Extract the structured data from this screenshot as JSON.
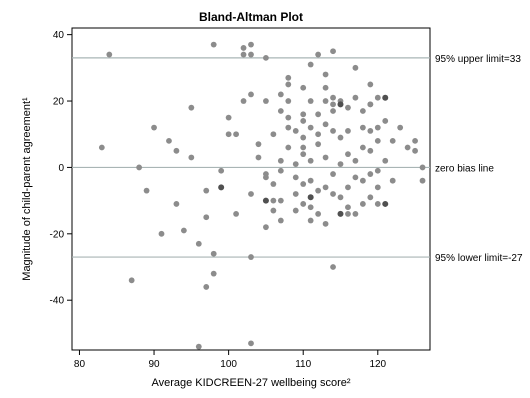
{
  "chart_data": {
    "type": "scatter",
    "title": "Bland-Altman Plot",
    "xlabel": "Average KIDCREEN-27 wellbeing score²",
    "ylabel": "Magnitude of child-parent agreement¹",
    "xlim": [
      79,
      127
    ],
    "ylim": [
      -55,
      42
    ],
    "xticks": [
      80,
      90,
      100,
      110,
      120
    ],
    "yticks": [
      40,
      20,
      0,
      -20,
      -40
    ],
    "grid": false,
    "colors": {
      "point": "#8c8c8c",
      "point_dark": "#505050",
      "line": "#a9b5b5",
      "frame": "#000000"
    },
    "reference_lines": [
      {
        "y": 33,
        "label": "95% upper limit=33"
      },
      {
        "y": 0,
        "label": "zero bias line"
      },
      {
        "y": -27,
        "label": "95% lower limit=-27"
      }
    ],
    "points": [
      [
        84,
        34
      ],
      [
        83,
        6
      ],
      [
        88,
        0
      ],
      [
        89,
        -7
      ],
      [
        90,
        12
      ],
      [
        91,
        -20
      ],
      [
        92,
        8
      ],
      [
        93,
        5
      ],
      [
        93,
        -11
      ],
      [
        94,
        -19
      ],
      [
        95,
        18
      ],
      [
        95,
        3
      ],
      [
        96,
        -23
      ],
      [
        87,
        -34
      ],
      [
        96,
        -54
      ],
      [
        97,
        -7
      ],
      [
        97,
        -15
      ],
      [
        97,
        -36
      ],
      [
        98,
        -32
      ],
      [
        98,
        -26
      ],
      [
        98,
        37
      ],
      [
        99,
        -1
      ],
      [
        100,
        10
      ],
      [
        100,
        15
      ],
      [
        101,
        10
      ],
      [
        101,
        -14
      ],
      [
        102,
        20
      ],
      [
        102,
        34
      ],
      [
        102,
        36
      ],
      [
        103,
        37
      ],
      [
        103,
        34
      ],
      [
        103,
        22
      ],
      [
        103,
        -8
      ],
      [
        103,
        -27
      ],
      [
        103,
        -53
      ],
      [
        104,
        3
      ],
      [
        104,
        7
      ],
      [
        105,
        20
      ],
      [
        105,
        33
      ],
      [
        105,
        -3
      ],
      [
        105,
        -18
      ],
      [
        105,
        -2
      ],
      [
        106,
        10
      ],
      [
        106,
        -5
      ],
      [
        106,
        -10
      ],
      [
        106,
        -13
      ],
      [
        107,
        22
      ],
      [
        107,
        17
      ],
      [
        107,
        2
      ],
      [
        107,
        -1
      ],
      [
        107,
        -10
      ],
      [
        107,
        -16
      ],
      [
        108,
        12
      ],
      [
        108,
        15
      ],
      [
        108,
        20
      ],
      [
        108,
        25
      ],
      [
        108,
        27
      ],
      [
        108,
        6
      ],
      [
        109,
        11
      ],
      [
        109,
        1
      ],
      [
        109,
        -3
      ],
      [
        109,
        -8
      ],
      [
        109,
        -13
      ],
      [
        110,
        24
      ],
      [
        110,
        14
      ],
      [
        110,
        16
      ],
      [
        110,
        9
      ],
      [
        110,
        4
      ],
      [
        110,
        -5
      ],
      [
        110,
        -11
      ],
      [
        110,
        6
      ],
      [
        111,
        31
      ],
      [
        111,
        20
      ],
      [
        111,
        12
      ],
      [
        111,
        2
      ],
      [
        111,
        -4
      ],
      [
        111,
        -12
      ],
      [
        111,
        -16
      ],
      [
        112,
        34
      ],
      [
        112,
        16
      ],
      [
        112,
        10
      ],
      [
        112,
        7
      ],
      [
        112,
        -7
      ],
      [
        112,
        -14
      ],
      [
        113,
        28
      ],
      [
        113,
        24
      ],
      [
        113,
        20
      ],
      [
        113,
        13
      ],
      [
        113,
        3
      ],
      [
        113,
        -6
      ],
      [
        113,
        -17
      ],
      [
        114,
        35
      ],
      [
        114,
        21
      ],
      [
        114,
        17
      ],
      [
        114,
        11
      ],
      [
        114,
        -2
      ],
      [
        114,
        -8
      ],
      [
        114,
        -30
      ],
      [
        115,
        20
      ],
      [
        115,
        9
      ],
      [
        115,
        1
      ],
      [
        115,
        -9
      ],
      [
        116,
        18
      ],
      [
        116,
        11
      ],
      [
        116,
        4
      ],
      [
        116,
        -6
      ],
      [
        116,
        -12
      ],
      [
        117,
        30
      ],
      [
        117,
        21
      ],
      [
        117,
        2
      ],
      [
        117,
        -3
      ],
      [
        117,
        -14
      ],
      [
        118,
        17
      ],
      [
        118,
        12
      ],
      [
        118,
        6
      ],
      [
        118,
        -4
      ],
      [
        118,
        -11
      ],
      [
        119,
        25
      ],
      [
        119,
        19
      ],
      [
        119,
        11
      ],
      [
        119,
        5
      ],
      [
        119,
        -2
      ],
      [
        119,
        -9
      ],
      [
        120,
        12
      ],
      [
        120,
        8
      ],
      [
        120,
        -1
      ],
      [
        120,
        -6
      ],
      [
        121,
        14
      ],
      [
        121,
        2
      ],
      [
        122,
        8
      ],
      [
        122,
        -4
      ],
      [
        123,
        12
      ],
      [
        124,
        6
      ],
      [
        125,
        8
      ],
      [
        125,
        5
      ],
      [
        126,
        0
      ],
      [
        126,
        -4
      ],
      [
        120,
        21
      ],
      [
        120,
        -11
      ],
      [
        119,
        19
      ],
      [
        116,
        -14
      ],
      [
        114,
        19
      ]
    ],
    "dark_points": [
      [
        99,
        -6
      ],
      [
        105,
        -10
      ],
      [
        111,
        -9
      ],
      [
        115,
        19
      ],
      [
        115,
        -14
      ],
      [
        121,
        21
      ],
      [
        121,
        -11
      ]
    ]
  }
}
